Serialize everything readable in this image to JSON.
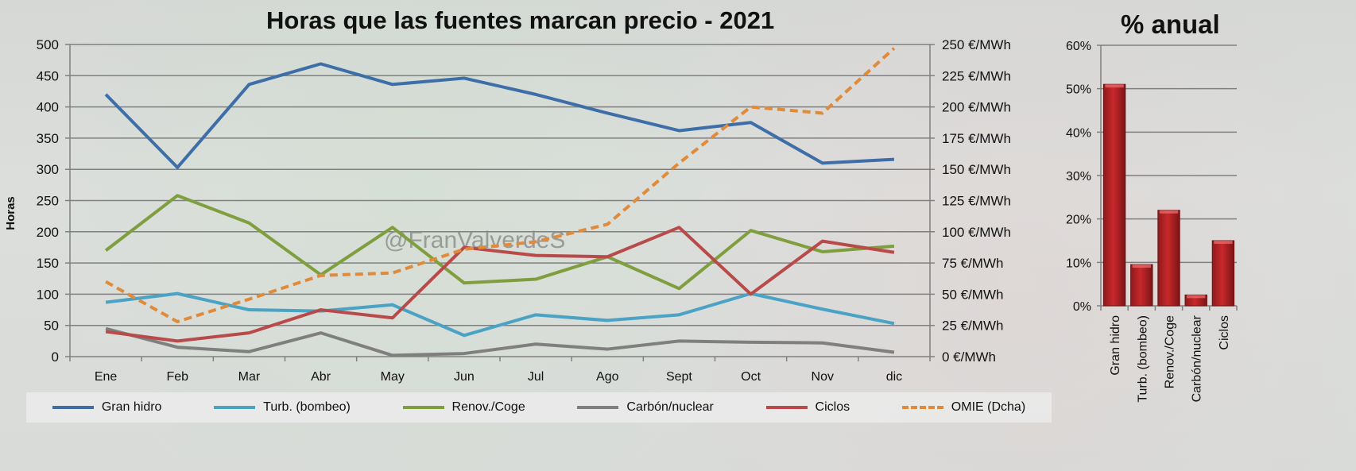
{
  "chart_data": [
    {
      "type": "line",
      "title": "Horas que las fuentes marcan precio - 2021",
      "xlabel": "",
      "ylabel": "Horas",
      "y2label": "€/MWh",
      "ylim": [
        0,
        500
      ],
      "y2lim": [
        0,
        250
      ],
      "yticks": [
        "0",
        "50",
        "100",
        "150",
        "200",
        "250",
        "300",
        "350",
        "400",
        "450",
        "500"
      ],
      "y2ticks": [
        "0 €/MWh",
        "25 €/MWh",
        "50 €/MWh",
        "75 €/MWh",
        "100 €/MWh",
        "125 €/MWh",
        "150 €/MWh",
        "175 €/MWh",
        "200 €/MWh",
        "225 €/MWh",
        "250 €/MWh"
      ],
      "categories": [
        "Ene",
        "Feb",
        "Mar",
        "Abr",
        "May",
        "Jun",
        "Jul",
        "Ago",
        "Sept",
        "Oct",
        "Nov",
        "dic"
      ],
      "grid": true,
      "legend_position": "bottom",
      "watermark": "@FranValverdeS",
      "series": [
        {
          "name": "Gran hidro",
          "axis": "left",
          "color": "#3e6ea8",
          "dashed": false,
          "values": [
            420,
            303,
            436,
            469,
            436,
            446,
            420,
            390,
            362,
            375,
            310,
            316
          ]
        },
        {
          "name": "Turb. (bombeo)",
          "axis": "left",
          "color": "#4aa3c4",
          "dashed": false,
          "values": [
            87,
            101,
            75,
            73,
            83,
            34,
            67,
            58,
            67,
            101,
            76,
            53
          ]
        },
        {
          "name": "Renov./Coge",
          "axis": "left",
          "color": "#7f9e3e",
          "dashed": false,
          "values": [
            170,
            258,
            214,
            131,
            207,
            118,
            124,
            160,
            109,
            202,
            168,
            177
          ]
        },
        {
          "name": "Carbón/nuclear",
          "axis": "left",
          "color": "#7f7f7f",
          "dashed": false,
          "values": [
            45,
            15,
            8,
            38,
            2,
            5,
            20,
            12,
            25,
            23,
            22,
            7
          ]
        },
        {
          "name": "Ciclos",
          "axis": "left",
          "color": "#b84a4a",
          "dashed": false,
          "values": [
            40,
            25,
            38,
            75,
            62,
            175,
            162,
            160,
            207,
            100,
            185,
            167
          ]
        },
        {
          "name": "OMIE (Dcha)",
          "axis": "right",
          "color": "#e08a3c",
          "dashed": true,
          "values": [
            60,
            28,
            46,
            65,
            67,
            86,
            92,
            106,
            155,
            200,
            195,
            247
          ]
        }
      ]
    },
    {
      "type": "bar",
      "title": "% anual",
      "categories": [
        "Gran hidro",
        "Turb. (bombeo)",
        "Renov./Coge",
        "Carbón/nuclear",
        "Ciclos"
      ],
      "values": [
        51,
        9.5,
        22,
        2.5,
        15
      ],
      "ylim": [
        0,
        60
      ],
      "yticks": [
        "0%",
        "10%",
        "20%",
        "30%",
        "40%",
        "50%",
        "60%"
      ],
      "color": "#c8282b",
      "grid": true
    }
  ]
}
